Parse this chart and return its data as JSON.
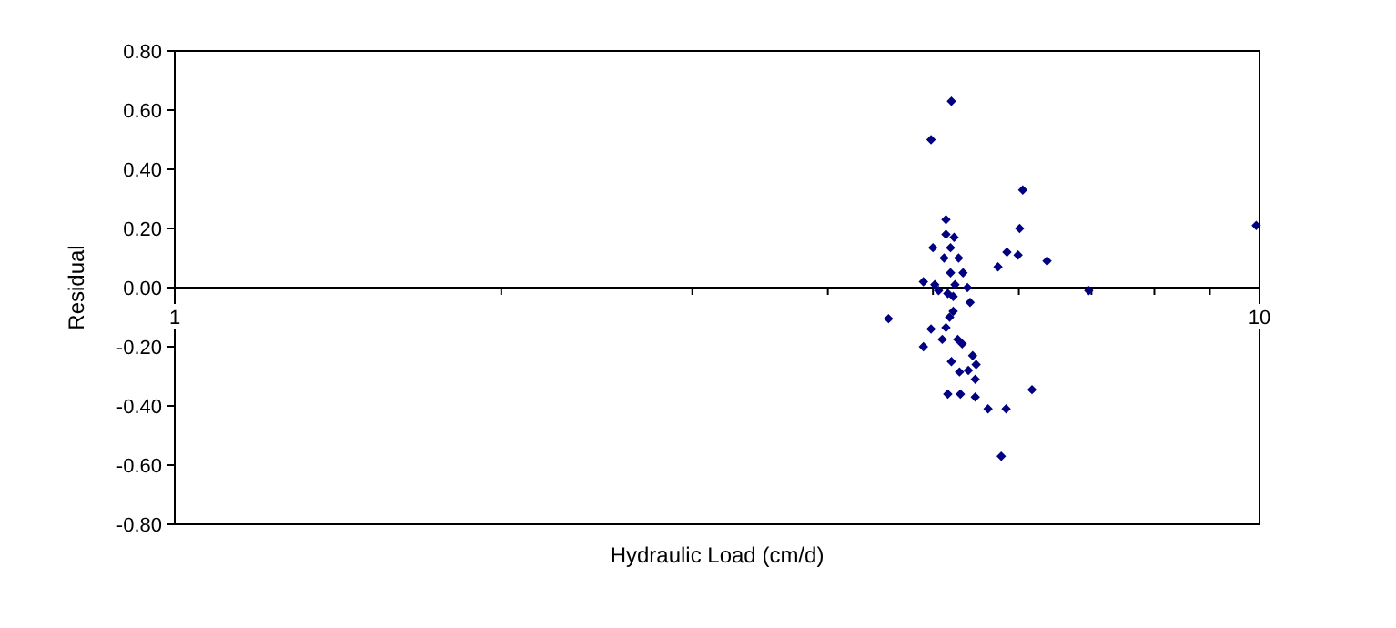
{
  "chart_data": {
    "type": "scatter",
    "xlabel": "Hydraulic Load (cm/d)",
    "ylabel": "Residual",
    "log": "x",
    "marker": "diamond",
    "grid": false,
    "xlim": [
      1,
      10
    ],
    "xticks": [
      1,
      {
        "value": 2,
        "label": null
      },
      {
        "value": 3,
        "label": null
      },
      {
        "value": 4,
        "label": null
      },
      {
        "value": 5,
        "label": null
      },
      {
        "value": 6,
        "label": null
      },
      {
        "value": 7,
        "label": null
      },
      {
        "value": 8,
        "label": null
      },
      {
        "value": 9,
        "label": null
      },
      10
    ],
    "ylim": [
      -0.8,
      0.8
    ],
    "yticks": [
      {
        "value": -0.8,
        "label": "-0.80"
      },
      {
        "value": -0.6,
        "label": "-0.60"
      },
      {
        "value": -0.4,
        "label": "-0.40"
      },
      {
        "value": -0.2,
        "label": "-0.20"
      },
      {
        "value": 0,
        "label": "0.00"
      },
      {
        "value": 0.2,
        "label": "0.20"
      },
      {
        "value": 0.4,
        "label": "0.40"
      },
      {
        "value": 0.6,
        "label": "0.60"
      },
      {
        "value": 0.8,
        "label": "0.80"
      }
    ],
    "series": [
      {
        "color": "#000080",
        "x": [
          5.2,
          4.98,
          6.05,
          5.14,
          6.01,
          5.14,
          5.23,
          5.0,
          5.19,
          5.85,
          5.99,
          5.28,
          5.12,
          6.37,
          5.74,
          5.33,
          5.19,
          4.9,
          5.02,
          5.24,
          5.38,
          5.06,
          5.16,
          6.96,
          5.22,
          5.41,
          4.55,
          5.22,
          5.18,
          4.98,
          5.14,
          4.9,
          5.1,
          5.27,
          5.32,
          5.44,
          5.2,
          5.48,
          5.39,
          5.29,
          5.47,
          6.17,
          5.16,
          5.3,
          5.47,
          5.62,
          5.84,
          5.78,
          9.93
        ],
        "values": [
          0.63,
          0.5,
          0.33,
          0.23,
          0.2,
          0.18,
          0.17,
          0.135,
          0.135,
          0.12,
          0.11,
          0.1,
          0.1,
          0.09,
          0.07,
          0.05,
          0.05,
          0.02,
          0.01,
          0.01,
          0.0,
          -0.01,
          -0.02,
          -0.01,
          -0.03,
          -0.05,
          -0.105,
          -0.08,
          -0.1,
          -0.14,
          -0.135,
          -0.2,
          -0.175,
          -0.175,
          -0.19,
          -0.23,
          -0.25,
          -0.26,
          -0.28,
          -0.285,
          -0.31,
          -0.345,
          -0.36,
          -0.36,
          -0.37,
          -0.41,
          -0.41,
          -0.57,
          0.21
        ]
      }
    ]
  }
}
